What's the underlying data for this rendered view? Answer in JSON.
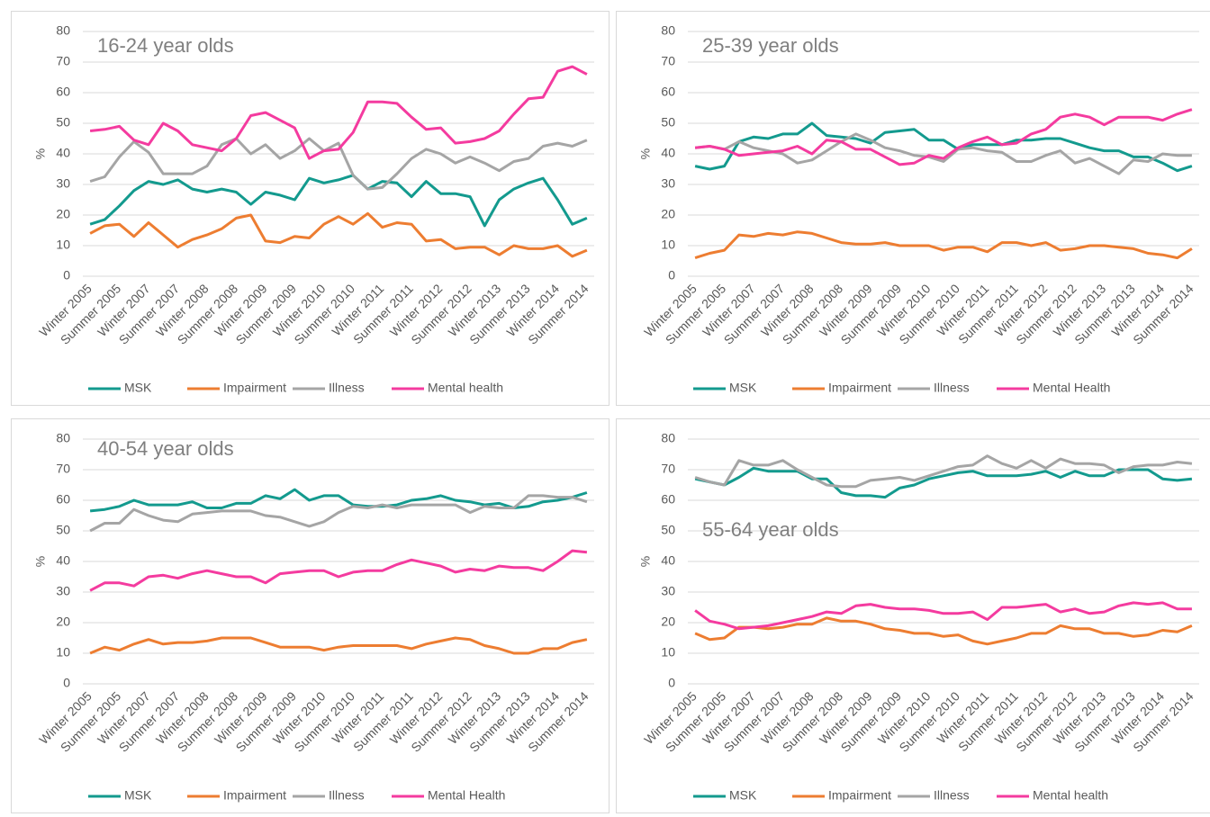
{
  "chart_data": [
    {
      "type": "line",
      "title": "16-24 year olds",
      "y_label": "%",
      "ylim": [
        0,
        80
      ],
      "yticks": [
        0,
        10,
        20,
        30,
        40,
        50,
        60,
        70,
        80
      ],
      "grid": true,
      "categories": [
        "Winter 2005",
        null,
        "Summer 2005",
        null,
        "Winter 2007",
        null,
        "Summer 2007",
        null,
        "Winter 2008",
        null,
        "Summer 2008",
        null,
        "Winter 2009",
        null,
        "Summer 2009",
        null,
        "Winter 2010",
        null,
        "Summer 2010",
        null,
        "Winter 2011",
        null,
        "Summer 2011",
        null,
        "Winter 2012",
        null,
        "Summer 2012",
        null,
        "Winter 2013",
        null,
        "Summer 2013",
        null,
        "Winter 2014",
        null,
        "Summer 2014"
      ],
      "series": [
        {
          "name": "MSK",
          "color": "#139a8e",
          "values": [
            17,
            18.5,
            23,
            28,
            31,
            30,
            31.5,
            28.5,
            27.5,
            28.5,
            27.5,
            23.5,
            27.5,
            26.5,
            25,
            32,
            30.5,
            31.5,
            33,
            28.5,
            31,
            30.5,
            26,
            31,
            27,
            27,
            26,
            16.5,
            25,
            28.5,
            30.5,
            32,
            25,
            17,
            19
          ]
        },
        {
          "name": "Impairment",
          "color": "#ed7d31",
          "values": [
            14,
            16.5,
            17,
            13,
            17.5,
            13.5,
            9.5,
            12,
            13.5,
            15.5,
            19,
            20,
            11.5,
            11,
            13,
            12.5,
            17,
            19.5,
            17,
            20.5,
            16,
            17.5,
            17,
            11.5,
            12,
            9,
            9.5,
            9.5,
            7,
            10,
            9,
            9,
            10,
            6.5,
            8.5
          ]
        },
        {
          "name": "Illness",
          "color": "#a5a5a5",
          "values": [
            31,
            32.5,
            39,
            44,
            40.5,
            33.5,
            33.5,
            33.5,
            36,
            43,
            45,
            40,
            43,
            38.5,
            41,
            45,
            41,
            43.5,
            33,
            28.5,
            29,
            33.5,
            38.5,
            41.5,
            40,
            37,
            39,
            37,
            34.5,
            37.5,
            38.5,
            42.5,
            43.5,
            42.5,
            44.5
          ]
        },
        {
          "name": "Mental health",
          "color": "#f43b9f",
          "values": [
            47.5,
            48,
            49,
            44.5,
            43,
            50,
            47.5,
            43,
            42,
            41,
            45,
            52.5,
            53.5,
            51,
            48.5,
            38.5,
            41,
            41.5,
            47,
            57,
            57,
            56.5,
            52,
            48,
            48.5,
            43.5,
            44,
            45,
            47.5,
            53,
            58,
            58.5,
            67,
            68.5,
            66
          ]
        }
      ]
    },
    {
      "type": "line",
      "title": "25-39 year olds",
      "y_label": "%",
      "ylim": [
        0,
        80
      ],
      "yticks": [
        0,
        10,
        20,
        30,
        40,
        50,
        60,
        70,
        80
      ],
      "grid": true,
      "categories": [
        "Winter 2005",
        null,
        "Summer 2005",
        null,
        "Winter 2007",
        null,
        "Summer 2007",
        null,
        "Winter 2008",
        null,
        "Summer 2008",
        null,
        "Winter 2009",
        null,
        "Summer 2009",
        null,
        "Winter 2010",
        null,
        "Summer 2010",
        null,
        "Winter 2011",
        null,
        "Summer 2011",
        null,
        "Winter 2012",
        null,
        "Summer 2012",
        null,
        "Winter 2013",
        null,
        "Summer 2013",
        null,
        "Winter 2014",
        null,
        "Summer 2014"
      ],
      "series": [
        {
          "name": "MSK",
          "color": "#139a8e",
          "values": [
            36,
            35,
            36,
            44,
            45.5,
            45,
            46.5,
            46.5,
            50,
            46,
            45.5,
            45,
            43.5,
            47,
            47.5,
            48,
            44.5,
            44.5,
            41.5,
            43,
            43,
            43,
            44.5,
            44.5,
            45,
            45,
            43.5,
            42,
            41,
            41,
            39,
            39,
            37,
            34.5,
            36
          ]
        },
        {
          "name": "Impairment",
          "color": "#ed7d31",
          "values": [
            6,
            7.5,
            8.5,
            13.5,
            13,
            14,
            13.5,
            14.5,
            14,
            12.5,
            11,
            10.5,
            10.5,
            11,
            10,
            10,
            10,
            8.5,
            9.5,
            9.5,
            8,
            11,
            11,
            10,
            11,
            8.5,
            9,
            10,
            10,
            9.5,
            9,
            7.5,
            7,
            6,
            9
          ]
        },
        {
          "name": "Illness",
          "color": "#a5a5a5",
          "values": [
            42,
            42.5,
            41.5,
            44,
            42,
            41,
            40,
            37,
            38,
            41,
            44,
            46.5,
            44.5,
            42,
            41,
            39.5,
            39,
            37.5,
            41.5,
            42,
            41,
            40.5,
            37.5,
            37.5,
            39.5,
            41,
            37,
            38.5,
            36,
            33.5,
            38,
            37.5,
            40,
            39.5,
            39.5
          ]
        },
        {
          "name": "Mental Health",
          "color": "#f43b9f",
          "values": [
            42,
            42.5,
            41.5,
            39.5,
            40,
            40.5,
            41,
            42.5,
            40,
            44.5,
            44,
            41.5,
            41.5,
            39,
            36.5,
            37,
            39.5,
            38.5,
            42,
            44,
            45.5,
            43,
            43.5,
            46.5,
            48,
            52,
            53,
            52,
            49.5,
            52,
            52,
            52,
            51,
            53,
            54.5
          ]
        }
      ]
    },
    {
      "type": "line",
      "title": "40-54 year olds",
      "y_label": "%",
      "ylim": [
        0,
        80
      ],
      "yticks": [
        0,
        10,
        20,
        30,
        40,
        50,
        60,
        70,
        80
      ],
      "grid": true,
      "categories": [
        "Winter 2005",
        null,
        "Summer 2005",
        null,
        "Winter 2007",
        null,
        "Summer 2007",
        null,
        "Winter 2008",
        null,
        "Summer 2008",
        null,
        "Winter 2009",
        null,
        "Summer 2009",
        null,
        "Winter 2010",
        null,
        "Summer 2010",
        null,
        "Winter 2011",
        null,
        "Summer 2011",
        null,
        "Winter 2012",
        null,
        "Summer 2012",
        null,
        "Winter 2013",
        null,
        "Summer 2013",
        null,
        "Winter 2014",
        null,
        "Summer 2014"
      ],
      "series": [
        {
          "name": "MSK",
          "color": "#139a8e",
          "values": [
            56.5,
            57,
            58,
            60,
            58.5,
            58.5,
            58.5,
            59.5,
            57.5,
            57.5,
            59,
            59,
            61.5,
            60.5,
            63.5,
            60,
            61.5,
            61.5,
            58.5,
            58,
            58,
            58.5,
            60,
            60.5,
            61.5,
            60,
            59.5,
            58.5,
            59,
            57.5,
            58,
            59.5,
            60,
            61,
            62.5
          ]
        },
        {
          "name": "Impairment",
          "color": "#ed7d31",
          "values": [
            10,
            12,
            11,
            13,
            14.5,
            13,
            13.5,
            13.5,
            14,
            15,
            15,
            15,
            13.5,
            12,
            12,
            12,
            11,
            12,
            12.5,
            12.5,
            12.5,
            12.5,
            11.5,
            13,
            14,
            15,
            14.5,
            12.5,
            11.5,
            10,
            10,
            11.5,
            11.5,
            13.5,
            14.5
          ]
        },
        {
          "name": "Illness",
          "color": "#a5a5a5",
          "values": [
            50,
            52.5,
            52.5,
            57,
            55,
            53.5,
            53,
            55.5,
            56,
            56.5,
            56.5,
            56.5,
            55,
            54.5,
            53,
            51.5,
            53,
            56,
            58,
            57.5,
            58.5,
            57.5,
            58.5,
            58.5,
            58.5,
            58.5,
            56,
            58,
            57.5,
            57.5,
            61.5,
            61.5,
            61,
            61,
            59.5
          ]
        },
        {
          "name": "Mental Health",
          "color": "#f43b9f",
          "values": [
            30.5,
            33,
            33,
            32,
            35,
            35.5,
            34.5,
            36,
            37,
            36,
            35,
            35,
            33,
            36,
            36.5,
            37,
            37,
            35,
            36.5,
            37,
            37,
            39,
            40.5,
            39.5,
            38.5,
            36.5,
            37.5,
            37,
            38.5,
            38,
            38,
            37,
            40,
            43.5,
            43
          ]
        }
      ]
    },
    {
      "type": "line",
      "title": "55-64 year olds",
      "y_label": "%",
      "ylim": [
        0,
        80
      ],
      "yticks": [
        0,
        10,
        20,
        30,
        40,
        50,
        60,
        70,
        80
      ],
      "grid": true,
      "categories": [
        "Winter 2005",
        null,
        "Summer 2005",
        null,
        "Winter 2007",
        null,
        "Summer 2007",
        null,
        "Winter 2008",
        null,
        "Summer 2008",
        null,
        "Winter 2009",
        null,
        "Summer 2009",
        null,
        "Winter 2010",
        null,
        "Summer 2010",
        null,
        "Winter 2011",
        null,
        "Summer 2011",
        null,
        "Winter 2012",
        null,
        "Summer 2012",
        null,
        "Winter 2013",
        null,
        "Summer 2013",
        null,
        "Winter 2014",
        null,
        "Summer 2014"
      ],
      "series": [
        {
          "name": "MSK",
          "color": "#139a8e",
          "values": [
            67,
            66,
            65,
            67.5,
            70.5,
            69.5,
            69.5,
            69.5,
            67,
            67,
            62.5,
            61.5,
            61.5,
            61,
            64,
            65,
            67,
            68,
            69,
            69.5,
            68,
            68,
            68,
            68.5,
            69.5,
            67.5,
            69.5,
            68,
            68,
            70,
            70,
            70,
            67,
            66.5,
            67
          ]
        },
        {
          "name": "Impairment",
          "color": "#ed7d31",
          "values": [
            16.5,
            14.5,
            15,
            18.5,
            18.5,
            18,
            18.5,
            19.5,
            19.5,
            21.5,
            20.5,
            20.5,
            19.5,
            18,
            17.5,
            16.5,
            16.5,
            15.5,
            16,
            14,
            13,
            14,
            15,
            16.5,
            16.5,
            19,
            18,
            18,
            16.5,
            16.5,
            15.5,
            16,
            17.5,
            17,
            19
          ]
        },
        {
          "name": "Illness",
          "color": "#a5a5a5",
          "values": [
            67.5,
            66,
            65,
            73,
            71.5,
            71.5,
            73,
            70,
            67.5,
            65,
            64.5,
            64.5,
            66.5,
            67,
            67.5,
            66.5,
            68,
            69.5,
            71,
            71.5,
            74.5,
            72,
            70.5,
            73,
            70.5,
            73.5,
            72,
            72,
            71.5,
            69,
            71,
            71.5,
            71.5,
            72.5,
            72
          ]
        },
        {
          "name": "Mental health",
          "color": "#f43b9f",
          "values": [
            24,
            20.5,
            19.5,
            18,
            18.5,
            19,
            20,
            21,
            22,
            23.5,
            23,
            25.5,
            26,
            25,
            24.5,
            24.5,
            24,
            23,
            23,
            23.5,
            21,
            25,
            25,
            25.5,
            26,
            23.5,
            24.5,
            23,
            23.5,
            25.5,
            26.5,
            26,
            26.5,
            24.5,
            24.5
          ]
        }
      ]
    }
  ]
}
